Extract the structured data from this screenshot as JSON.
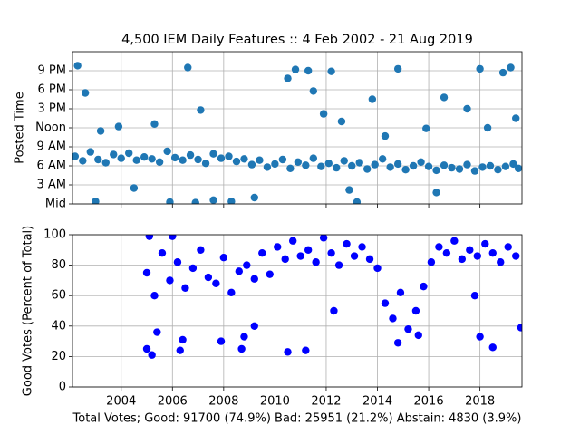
{
  "chart_data": [
    {
      "type": "scatter",
      "title": "4,500 IEM Daily Features :: 4 Feb 2002 - 21 Aug 2019",
      "y_label": "Posted Time",
      "color": "#1f77b4",
      "grid": true,
      "xlim": [
        2002.1,
        2019.64
      ],
      "xticks": [
        2004,
        2006,
        2008,
        2010,
        2012,
        2014,
        2016,
        2018
      ],
      "ylim": [
        0,
        24
      ],
      "yticks": [
        {
          "value": 0,
          "label": "Mid"
        },
        {
          "value": 3,
          "label": "3 AM"
        },
        {
          "value": 6,
          "label": "6 AM"
        },
        {
          "value": 9,
          "label": "9 AM"
        },
        {
          "value": 12,
          "label": "Noon"
        },
        {
          "value": 15,
          "label": "3 PM"
        },
        {
          "value": 18,
          "label": "6 PM"
        },
        {
          "value": 21,
          "label": "9 PM"
        }
      ],
      "x": [
        2002.2,
        2002.5,
        2002.8,
        2003.1,
        2003.4,
        2003.7,
        2004.0,
        2004.3,
        2004.6,
        2004.9,
        2005.2,
        2005.5,
        2005.8,
        2006.1,
        2006.4,
        2006.7,
        2007.0,
        2007.3,
        2007.6,
        2007.9,
        2008.2,
        2008.5,
        2008.8,
        2009.1,
        2009.4,
        2009.7,
        2010.0,
        2010.3,
        2010.6,
        2010.9,
        2011.2,
        2011.5,
        2011.8,
        2012.1,
        2012.4,
        2012.7,
        2013.0,
        2013.3,
        2013.6,
        2013.9,
        2014.2,
        2014.5,
        2014.8,
        2015.1,
        2015.4,
        2015.7,
        2016.0,
        2016.3,
        2016.6,
        2016.9,
        2017.2,
        2017.5,
        2017.8,
        2018.1,
        2018.4,
        2018.7,
        2019.0,
        2019.3,
        2019.5,
        2002.3,
        2002.6,
        2003.2,
        2003.9,
        2005.3,
        2005.9,
        2006.6,
        2006.9,
        2007.1,
        2008.3,
        2009.2,
        2010.5,
        2010.8,
        2011.3,
        2011.5,
        2011.9,
        2012.2,
        2012.6,
        2013.2,
        2013.8,
        2014.3,
        2014.8,
        2015.9,
        2016.6,
        2017.5,
        2018.0,
        2018.3,
        2018.9,
        2019.2,
        2019.4,
        2004.5,
        2007.6,
        2012.9,
        2016.3,
        2003.0
      ],
      "values": [
        7.5,
        6.8,
        8.2,
        7.0,
        6.5,
        7.8,
        7.2,
        8.0,
        6.9,
        7.4,
        7.1,
        6.6,
        8.3,
        7.3,
        6.9,
        7.7,
        7.0,
        6.4,
        7.9,
        7.2,
        7.5,
        6.7,
        7.1,
        6.2,
        6.9,
        5.8,
        6.3,
        7.0,
        5.6,
        6.6,
        6.1,
        7.2,
        5.9,
        6.4,
        5.7,
        6.8,
        6.0,
        6.5,
        5.5,
        6.2,
        7.1,
        5.8,
        6.3,
        5.4,
        6.0,
        6.6,
        5.9,
        5.3,
        6.1,
        5.7,
        5.5,
        6.2,
        5.2,
        5.8,
        6.0,
        5.4,
        5.9,
        6.3,
        5.6,
        21.8,
        17.5,
        11.5,
        12.2,
        12.6,
        0.3,
        21.5,
        0.2,
        14.8,
        0.4,
        1.0,
        19.8,
        21.2,
        21.0,
        17.8,
        14.2,
        20.9,
        13.0,
        0.3,
        16.5,
        10.7,
        21.3,
        11.9,
        16.8,
        15.0,
        21.3,
        12.0,
        20.7,
        21.5,
        13.5,
        2.5,
        0.6,
        2.2,
        1.8,
        0.4
      ]
    },
    {
      "type": "scatter",
      "y_label": "Good Votes (Percent of Total)",
      "x_label": "Total Votes; Good: 91700 (74.9%) Bad: 25951 (21.2%) Abstain: 4830 (3.9%)",
      "color": "blue",
      "grid": true,
      "xlim": [
        2002.1,
        2019.64
      ],
      "xticks": [
        2004,
        2006,
        2008,
        2010,
        2012,
        2014,
        2016,
        2018
      ],
      "ylim": [
        0,
        100
      ],
      "yticks": [
        0,
        20,
        40,
        60,
        80,
        100
      ],
      "x": [
        2005.0,
        2005.3,
        2005.6,
        2005.9,
        2006.2,
        2006.5,
        2006.8,
        2007.1,
        2007.4,
        2007.7,
        2008.0,
        2008.3,
        2008.6,
        2008.9,
        2009.2,
        2009.5,
        2009.8,
        2010.1,
        2010.4,
        2010.7,
        2011.0,
        2011.3,
        2011.6,
        2011.9,
        2012.2,
        2012.5,
        2012.8,
        2013.1,
        2013.4,
        2013.7,
        2014.0,
        2014.3,
        2014.6,
        2014.9,
        2015.2,
        2015.5,
        2015.8,
        2016.1,
        2016.4,
        2016.7,
        2017.0,
        2017.3,
        2017.6,
        2017.9,
        2018.2,
        2018.5,
        2018.8,
        2019.1,
        2019.4,
        2005.0,
        2005.2,
        2005.4,
        2006.3,
        2006.4,
        2007.9,
        2008.7,
        2008.8,
        2010.5,
        2011.2,
        2014.8,
        2015.6,
        2018.0,
        2018.5,
        2019.6,
        2017.8,
        2012.3,
        2009.2,
        2005.1,
        2006.0
      ],
      "values": [
        75,
        60,
        88,
        70,
        82,
        65,
        78,
        90,
        72,
        68,
        85,
        62,
        76,
        80,
        71,
        88,
        74,
        92,
        84,
        96,
        86,
        90,
        82,
        98,
        88,
        80,
        94,
        86,
        92,
        84,
        78,
        55,
        45,
        62,
        38,
        50,
        66,
        82,
        92,
        88,
        96,
        84,
        90,
        86,
        94,
        88,
        82,
        92,
        86,
        25,
        21,
        36,
        24,
        31,
        30,
        25,
        33,
        23,
        24,
        29,
        34,
        33,
        26,
        39,
        60,
        50,
        40,
        99,
        99
      ]
    }
  ]
}
